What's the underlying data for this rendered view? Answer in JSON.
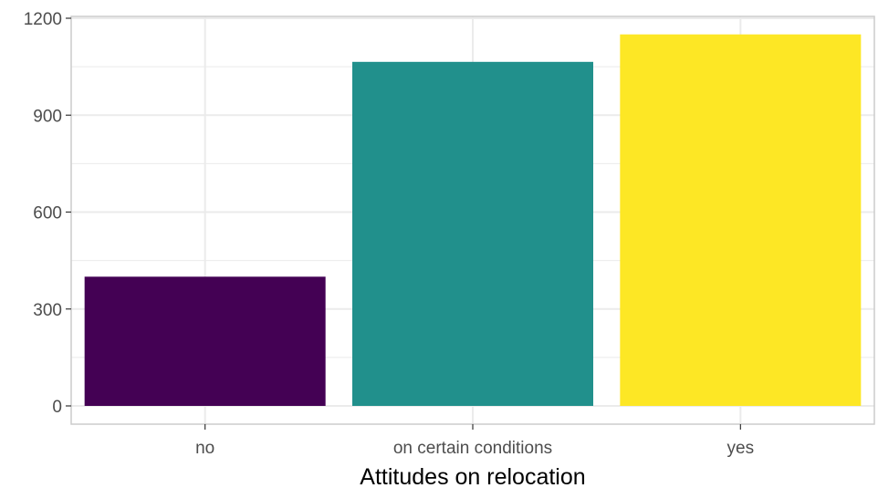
{
  "chart_data": {
    "type": "bar",
    "title": "",
    "xlabel": "Attitudes on relocation",
    "ylabel": "",
    "categories": [
      "no",
      "on certain conditions",
      "yes"
    ],
    "values": [
      400,
      1065,
      1150
    ],
    "colors": [
      "#440154",
      "#21908C",
      "#FDE725"
    ],
    "ylim": [
      0,
      1200
    ],
    "yticks": [
      0,
      300,
      600,
      900,
      1200
    ],
    "ytick_labels": [
      "0",
      "300",
      "600",
      "900",
      "1200"
    ],
    "grid": true,
    "legend": "none",
    "panel_border_color": "#cccccc",
    "grid_color": "#ebebeb"
  }
}
